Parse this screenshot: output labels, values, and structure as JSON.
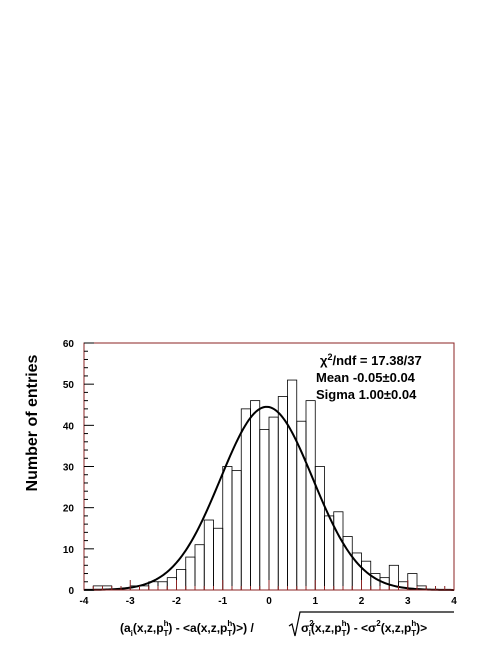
{
  "chart_data": {
    "type": "histogram",
    "ylabel": "Number of entries",
    "xlabel": {
      "main": "(a",
      "i_sub": "i",
      "args_pre": "(x,z,p",
      "sup_h": "h",
      "sub_T": "T",
      "mid": ") - <a(x,z,p",
      "close": ")>) / ",
      "sigma_i": "σ",
      "sigma_sup": "2",
      "sigma_sub": "i",
      "args_pre2": "(x,z,p",
      "mid2": ") - <σ",
      "sup_2": "2",
      "args_pre3": "(x,z,p",
      "close2": ")>"
    },
    "xlim": [
      -4,
      4
    ],
    "ylim": [
      0,
      60
    ],
    "xticks": [
      -4,
      -3,
      -2,
      -1,
      0,
      1,
      2,
      3,
      4
    ],
    "yticks": [
      0,
      10,
      20,
      30,
      40,
      50,
      60
    ],
    "bin_width": 0.2,
    "bin_start": -4.0,
    "counts": [
      0,
      1,
      1,
      0,
      0,
      1,
      1,
      2,
      2,
      3,
      5,
      8,
      11,
      17,
      15,
      30,
      29,
      44,
      46,
      39,
      42,
      47,
      51,
      41,
      46,
      30,
      18,
      19,
      13,
      9,
      7,
      4,
      3,
      6,
      2,
      4,
      1,
      0,
      0,
      0
    ],
    "fit": {
      "type": "gaussian",
      "amplitude": 44.5,
      "mean": -0.05,
      "sigma": 1.0
    },
    "stats": {
      "chi2_prefix": "χ",
      "chi2_sup": "2",
      "chi2_text": "/ndf = 17.38/37",
      "mean_text": "Mean -0.05±0.04",
      "sigma_text": "Sigma 1.00±0.04"
    },
    "colors": {
      "frame": "#8b2323",
      "histogram": "#000000",
      "fit": "#000000",
      "tick_bottom": "#8b2323"
    }
  }
}
